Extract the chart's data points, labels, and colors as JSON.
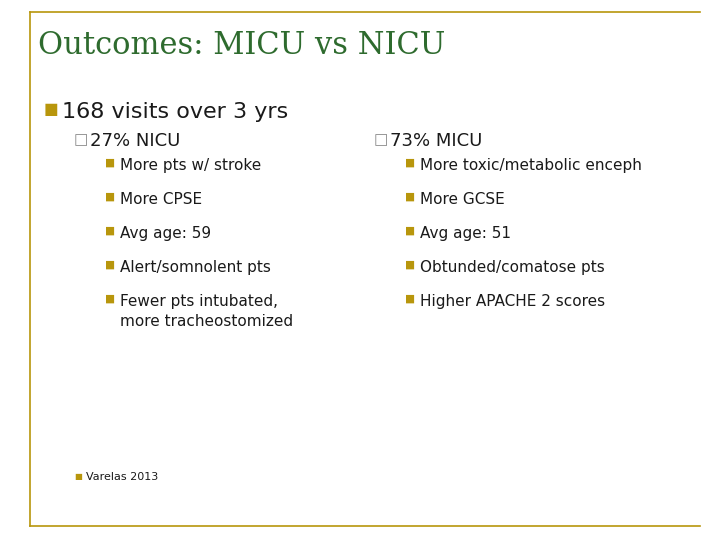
{
  "title": "Outcomes: MICU vs NICU",
  "title_color": "#2E6B2E",
  "title_fontsize": 22,
  "background_color": "#FFFFFF",
  "border_color": "#B8960C",
  "bullet1_text": "168 visits over 3 yrs",
  "bullet1_fontsize": 16,
  "sub_bullet_left_header": "27% NICU",
  "sub_bullet_right_header": "73% MICU",
  "sub_header_fontsize": 13,
  "left_items": [
    "More pts w/ stroke",
    "More CPSE",
    "Avg age: 59",
    "Alert/somnolent pts",
    "Fewer pts intubated,\nmore tracheostomized"
  ],
  "right_items": [
    "More toxic/metabolic enceph",
    "More GCSE",
    "Avg age: 51",
    "Obtunded/comatose pts",
    "Higher APACHE 2 scores"
  ],
  "item_color": "#1A1A1A",
  "item_fontsize": 11,
  "item_marker_color": "#B8960C",
  "sub_marker_color": "#888888",
  "footnote": "Varelas 2013",
  "footnote_fontsize": 8,
  "footnote_color": "#1A1A1A"
}
